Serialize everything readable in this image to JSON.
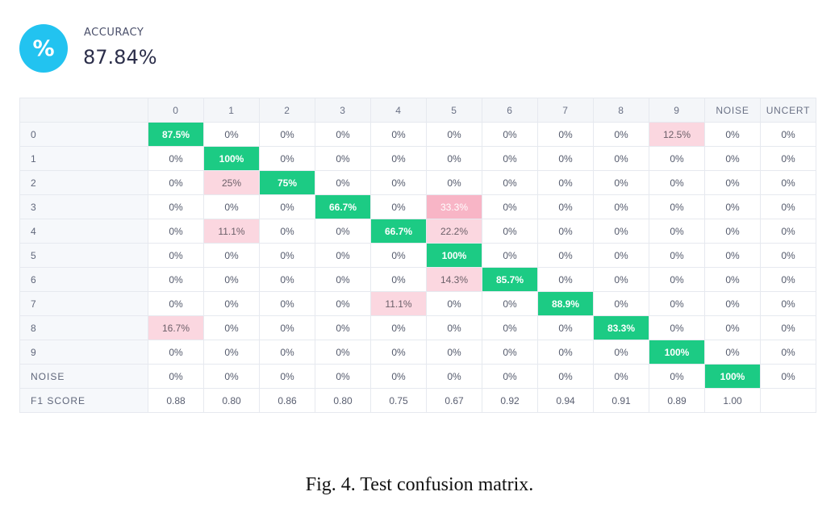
{
  "accuracy": {
    "icon": "percent-icon",
    "icon_glyph": "%",
    "label": "ACCURACY",
    "value": "87.84%"
  },
  "caption": "Fig. 4.  Test confusion matrix.",
  "chart_data": {
    "type": "heatmap",
    "title": "",
    "columns": [
      "0",
      "1",
      "2",
      "3",
      "4",
      "5",
      "6",
      "7",
      "8",
      "9",
      "NOISE",
      "UNCERT"
    ],
    "rows": [
      {
        "label": "0",
        "values": [
          "87.5%",
          "0%",
          "0%",
          "0%",
          "0%",
          "0%",
          "0%",
          "0%",
          "0%",
          "12.5%",
          "0%",
          "0%"
        ]
      },
      {
        "label": "1",
        "values": [
          "0%",
          "100%",
          "0%",
          "0%",
          "0%",
          "0%",
          "0%",
          "0%",
          "0%",
          "0%",
          "0%",
          "0%"
        ]
      },
      {
        "label": "2",
        "values": [
          "0%",
          "25%",
          "75%",
          "0%",
          "0%",
          "0%",
          "0%",
          "0%",
          "0%",
          "0%",
          "0%",
          "0%"
        ]
      },
      {
        "label": "3",
        "values": [
          "0%",
          "0%",
          "0%",
          "66.7%",
          "0%",
          "33.3%",
          "0%",
          "0%",
          "0%",
          "0%",
          "0%",
          "0%"
        ]
      },
      {
        "label": "4",
        "values": [
          "0%",
          "11.1%",
          "0%",
          "0%",
          "66.7%",
          "22.2%",
          "0%",
          "0%",
          "0%",
          "0%",
          "0%",
          "0%"
        ]
      },
      {
        "label": "5",
        "values": [
          "0%",
          "0%",
          "0%",
          "0%",
          "0%",
          "100%",
          "0%",
          "0%",
          "0%",
          "0%",
          "0%",
          "0%"
        ]
      },
      {
        "label": "6",
        "values": [
          "0%",
          "0%",
          "0%",
          "0%",
          "0%",
          "14.3%",
          "85.7%",
          "0%",
          "0%",
          "0%",
          "0%",
          "0%"
        ]
      },
      {
        "label": "7",
        "values": [
          "0%",
          "0%",
          "0%",
          "0%",
          "11.1%",
          "0%",
          "0%",
          "88.9%",
          "0%",
          "0%",
          "0%",
          "0%"
        ]
      },
      {
        "label": "8",
        "values": [
          "16.7%",
          "0%",
          "0%",
          "0%",
          "0%",
          "0%",
          "0%",
          "0%",
          "83.3%",
          "0%",
          "0%",
          "0%"
        ]
      },
      {
        "label": "9",
        "values": [
          "0%",
          "0%",
          "0%",
          "0%",
          "0%",
          "0%",
          "0%",
          "0%",
          "0%",
          "100%",
          "0%",
          "0%"
        ]
      },
      {
        "label": "NOISE",
        "values": [
          "0%",
          "0%",
          "0%",
          "0%",
          "0%",
          "0%",
          "0%",
          "0%",
          "0%",
          "0%",
          "100%",
          "0%"
        ]
      }
    ],
    "f1_row": {
      "label": "F1 SCORE",
      "values": [
        "0.88",
        "0.80",
        "0.86",
        "0.80",
        "0.75",
        "0.67",
        "0.92",
        "0.94",
        "0.91",
        "0.89",
        "1.00",
        ""
      ]
    },
    "colors": {
      "correct": "#1ccb84",
      "error_light": "#fbd7e0",
      "error_strong": "#f8b5c6"
    }
  }
}
